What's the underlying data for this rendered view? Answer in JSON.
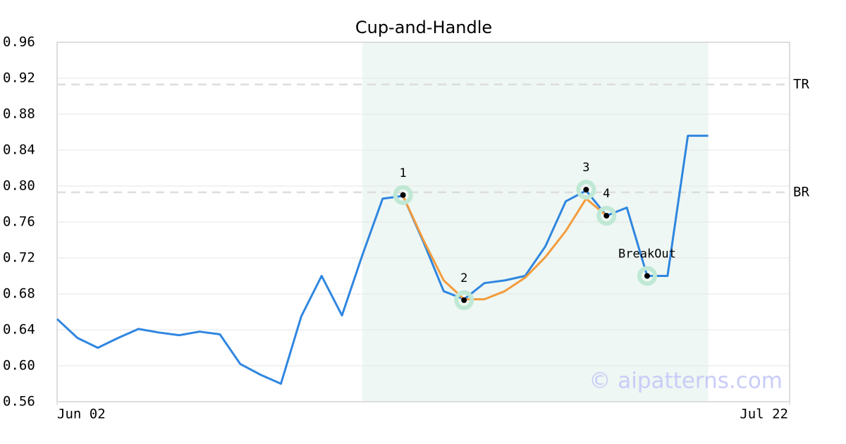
{
  "chart_data": {
    "type": "line",
    "title": "Cup-and-Handle",
    "x": [
      0,
      1,
      2,
      3,
      4,
      5,
      6,
      7,
      8,
      9,
      10,
      11,
      12,
      13,
      14,
      15,
      16,
      17,
      18,
      19,
      20,
      21,
      22,
      23,
      24,
      25,
      26,
      27,
      28,
      29,
      30,
      31,
      32
    ],
    "xlim": [
      0,
      36
    ],
    "xticks": [
      {
        "value": 0,
        "label": "Jun 02"
      },
      {
        "value": 36,
        "label": "Jul 22"
      }
    ],
    "ylim": [
      0.56,
      0.96
    ],
    "yticks": [
      0.56,
      {
        "value": 0.6,
        "label": "0.60"
      },
      0.64,
      0.68,
      0.72,
      0.76,
      {
        "value": 0.8,
        "label": "0.80"
      },
      0.84,
      0.88,
      0.92,
      0.96
    ],
    "grid": true,
    "series": [
      {
        "color": "#2f86e0",
        "values": [
          0.652,
          0.631,
          0.62,
          0.631,
          0.641,
          0.637,
          0.634,
          0.638,
          0.635,
          0.602,
          0.59,
          0.58,
          0.655,
          0.7,
          0.656,
          0.723,
          0.786,
          0.789,
          0.738,
          0.683,
          0.674,
          0.692,
          0.695,
          0.7,
          0.733,
          0.783,
          0.795,
          0.767,
          0.776,
          0.7,
          0.7,
          0.856,
          0.856
        ]
      },
      {
        "color": "#f39c3c",
        "values": [
          null,
          null,
          null,
          null,
          null,
          null,
          null,
          null,
          null,
          null,
          null,
          null,
          null,
          null,
          null,
          null,
          null,
          0.789,
          0.74,
          0.695,
          0.674,
          0.674,
          0.683,
          0.698,
          0.721,
          0.75,
          0.786,
          0.767,
          null,
          null,
          null,
          null,
          null
        ]
      }
    ],
    "points": [
      {
        "label": "1",
        "x": 17,
        "y": 0.79
      },
      {
        "label": "2",
        "x": 20,
        "y": 0.673
      },
      {
        "label": "3",
        "x": 26,
        "y": 0.796
      },
      {
        "label": "4",
        "x": 27,
        "y": 0.767
      },
      {
        "label": "BreakOut",
        "x": 29,
        "y": 0.7
      }
    ],
    "hlines": [
      {
        "label": "TR",
        "value": 0.913
      },
      {
        "label": "BR",
        "value": 0.793
      }
    ],
    "shade": [
      15,
      32
    ],
    "watermark": "© aipatterns.com"
  }
}
